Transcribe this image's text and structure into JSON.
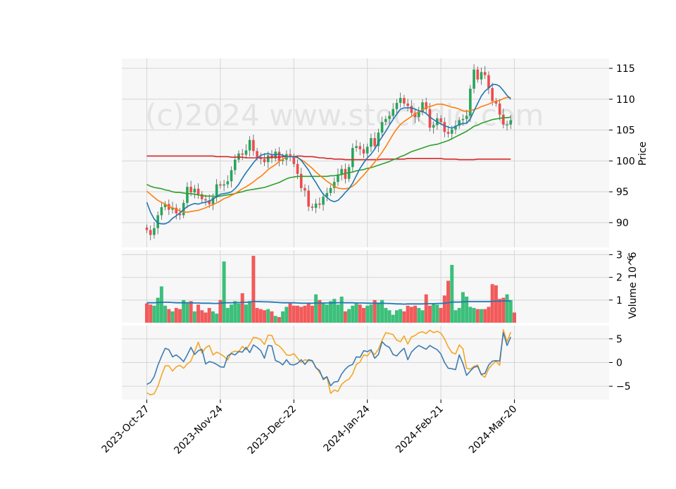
{
  "watermark": "(c)2024 www.stockdio.com",
  "chart_data": [
    {
      "type": "candlestick",
      "panel": "price",
      "ylabel": "Price",
      "ylim": [
        86.0,
        116.6
      ],
      "yticks": [
        90,
        95,
        100,
        105,
        110,
        115
      ],
      "grid": true,
      "colors": {
        "up": "#26a65b",
        "down": "#ef4b4b",
        "ma_fast": "#1f77b4",
        "ma_mid": "#ff7f0e",
        "ma_slow": "#2ca02c",
        "ma_long": "#d62728"
      },
      "close": [
        88.8,
        88.0,
        89.1,
        91.2,
        92.5,
        93.0,
        92.1,
        92.4,
        91.5,
        91.2,
        93.2,
        95.8,
        94.9,
        95.5,
        94.6,
        93.8,
        93.6,
        93.0,
        94.1,
        96.2,
        96.0,
        96.2,
        96.7,
        98.5,
        100.2,
        101.2,
        101.0,
        101.7,
        103.4,
        101.6,
        100.6,
        100.3,
        99.8,
        100.9,
        100.4,
        101.5,
        100.0,
        100.2,
        101.1,
        100.7,
        99.5,
        97.9,
        95.6,
        95.2,
        92.6,
        92.4,
        93.1,
        92.9,
        94.2,
        94.8,
        95.6,
        96.6,
        97.8,
        98.7,
        97.1,
        99.0,
        102.1,
        102.4,
        101.9,
        101.2,
        102.3,
        103.7,
        102.4,
        104.6,
        106.3,
        106.8,
        107.3,
        108.4,
        109.4,
        110.2,
        109.3,
        108.9,
        107.8,
        107.1,
        107.9,
        109.5,
        108.4,
        105.4,
        105.8,
        106.9,
        106.3,
        104.7,
        104.4,
        105.1,
        105.7,
        106.6,
        106.8,
        107.3,
        111.7,
        114.8,
        113.2,
        114.4,
        113.9,
        111.8,
        109.7,
        109.3,
        107.5,
        105.9,
        105.9,
        106.6
      ],
      "ma_fast": [
        93.3,
        91.7,
        90.6,
        89.9,
        89.8,
        89.8,
        90.1,
        90.7,
        91.1,
        91.6,
        92.1,
        92.6,
        92.9,
        93.1,
        93.0,
        93.2,
        93.3,
        93.5,
        93.8,
        94.2,
        94.6,
        94.7,
        94.8,
        95.0,
        95.5,
        96.2,
        97.2,
        98.1,
        98.9,
        99.7,
        100.4,
        100.9,
        101.1,
        101.2,
        101.0,
        101.0,
        101.1,
        100.9,
        100.7,
        100.7,
        100.7,
        100.6,
        100.1,
        99.3,
        98.5,
        97.4,
        96.5,
        95.5,
        94.6,
        94.1,
        93.6,
        93.4,
        93.6,
        94.2,
        94.9,
        95.5,
        96.4,
        97.6,
        98.8,
        99.7,
        100.5,
        101.1,
        101.9,
        103.0,
        103.9,
        104.8,
        105.8,
        106.7,
        107.6,
        108.4,
        108.6,
        108.6,
        108.6,
        108.4,
        108.1,
        108.0,
        107.7,
        107.1,
        106.7,
        106.3,
        106.0,
        105.7,
        105.5,
        105.3,
        105.6,
        105.9,
        106.1,
        106.1,
        106.8,
        108.1,
        109.3,
        110.5,
        111.3,
        111.8,
        112.4,
        112.4,
        112.1,
        111.4,
        110.6,
        110.0
      ],
      "ma_mid": [
        95.1,
        94.6,
        94.1,
        93.6,
        93.3,
        93.0,
        92.6,
        92.4,
        92.2,
        91.9,
        91.7,
        91.7,
        91.8,
        91.9,
        92.0,
        92.2,
        92.4,
        92.7,
        92.9,
        93.2,
        93.5,
        93.9,
        94.1,
        94.4,
        94.7,
        95.1,
        95.5,
        95.8,
        96.2,
        96.6,
        97.1,
        97.5,
        98.0,
        98.6,
        99.0,
        99.4,
        99.9,
        100.3,
        100.6,
        100.8,
        100.7,
        100.5,
        100.2,
        99.8,
        99.3,
        98.8,
        98.2,
        97.7,
        97.2,
        96.7,
        96.3,
        95.9,
        95.6,
        95.5,
        95.5,
        95.6,
        95.9,
        96.4,
        97.1,
        97.7,
        98.4,
        99.1,
        99.8,
        100.6,
        101.4,
        102.3,
        103.3,
        104.3,
        105.2,
        105.9,
        106.4,
        106.8,
        107.2,
        107.6,
        108.0,
        108.3,
        108.7,
        108.8,
        109.0,
        109.2,
        109.2,
        109.1,
        108.9,
        108.7,
        108.6,
        108.4,
        108.1,
        108.0,
        108.2,
        108.3,
        108.5,
        108.8,
        109.0,
        109.2,
        109.5,
        109.7,
        109.8,
        110.1,
        110.3,
        110.3
      ],
      "ma_slow": [
        96.2,
        95.9,
        95.7,
        95.6,
        95.5,
        95.3,
        95.2,
        95.0,
        94.9,
        94.9,
        94.8,
        94.7,
        94.7,
        94.6,
        94.5,
        94.4,
        94.3,
        94.3,
        94.3,
        94.2,
        94.3,
        94.4,
        94.5,
        94.6,
        94.7,
        94.9,
        95.0,
        95.2,
        95.3,
        95.4,
        95.5,
        95.6,
        95.7,
        95.9,
        96.1,
        96.3,
        96.5,
        96.8,
        97.1,
        97.3,
        97.4,
        97.5,
        97.5,
        97.5,
        97.5,
        97.5,
        97.5,
        97.5,
        97.5,
        97.5,
        97.6,
        97.6,
        97.7,
        97.8,
        98.0,
        98.1,
        98.2,
        98.4,
        98.5,
        98.6,
        98.8,
        98.9,
        99.1,
        99.3,
        99.5,
        99.7,
        99.9,
        100.2,
        100.4,
        100.7,
        100.9,
        101.2,
        101.5,
        101.7,
        101.9,
        102.1,
        102.3,
        102.5,
        102.6,
        102.7,
        102.9,
        103.1,
        103.3,
        103.6,
        103.9,
        104.2,
        104.5,
        104.8,
        105.2,
        105.6,
        105.8,
        106.1,
        106.3,
        106.5,
        106.7,
        106.8,
        106.9,
        107.0,
        107.0,
        107.1
      ],
      "ma_long": [
        100.8,
        100.8,
        100.8,
        100.8,
        100.8,
        100.8,
        100.8,
        100.8,
        100.8,
        100.8,
        100.8,
        100.8,
        100.8,
        100.8,
        100.8,
        100.8,
        100.8,
        100.8,
        100.8,
        100.7,
        100.7,
        100.7,
        100.7,
        100.6,
        100.6,
        100.6,
        100.6,
        100.5,
        100.5,
        100.5,
        100.5,
        100.5,
        100.5,
        100.5,
        100.6,
        100.6,
        100.6,
        100.7,
        100.7,
        100.7,
        100.7,
        100.8,
        100.8,
        100.7,
        100.7,
        100.7,
        100.6,
        100.5,
        100.5,
        100.4,
        100.4,
        100.3,
        100.3,
        100.3,
        100.2,
        100.2,
        100.2,
        100.2,
        100.2,
        100.2,
        100.2,
        100.2,
        100.2,
        100.2,
        100.3,
        100.3,
        100.3,
        100.3,
        100.3,
        100.3,
        100.3,
        100.4,
        100.4,
        100.4,
        100.4,
        100.4,
        100.4,
        100.4,
        100.4,
        100.4,
        100.4,
        100.3,
        100.3,
        100.3,
        100.3,
        100.2,
        100.2,
        100.2,
        100.2,
        100.2,
        100.3,
        100.3,
        100.3,
        100.3,
        100.3,
        100.3,
        100.3,
        100.3,
        100.3,
        100.3
      ]
    },
    {
      "type": "bar",
      "panel": "volume",
      "ylabel": "Volume  10^6",
      "ylim": [
        0,
        3.2
      ],
      "yticks": [
        1,
        2,
        3
      ],
      "values": [
        0.85,
        0.8,
        0.75,
        1.1,
        1.6,
        0.75,
        0.6,
        0.5,
        0.65,
        0.6,
        1.0,
        0.85,
        0.95,
        0.5,
        0.8,
        0.55,
        0.45,
        0.65,
        0.5,
        0.4,
        1.0,
        2.7,
        0.65,
        0.8,
        0.95,
        0.85,
        1.3,
        0.8,
        0.95,
        2.95,
        0.65,
        0.6,
        0.55,
        0.6,
        0.5,
        0.3,
        0.25,
        0.5,
        0.7,
        0.85,
        0.75,
        0.75,
        0.7,
        0.75,
        0.85,
        0.75,
        1.25,
        1.0,
        0.85,
        0.8,
        0.95,
        1.05,
        0.8,
        1.15,
        0.5,
        0.6,
        0.75,
        0.85,
        0.8,
        0.65,
        0.75,
        0.8,
        1.0,
        0.85,
        1.0,
        0.65,
        0.55,
        0.35,
        0.55,
        0.6,
        0.5,
        0.75,
        0.7,
        0.75,
        0.65,
        0.55,
        1.25,
        0.75,
        0.85,
        0.8,
        0.65,
        1.2,
        1.85,
        2.55,
        0.55,
        0.65,
        1.35,
        1.15,
        0.7,
        0.65,
        0.6,
        0.6,
        0.6,
        0.7,
        1.7,
        1.65,
        1.05,
        1.1,
        1.25,
        1.0,
        0.45
      ],
      "avg": [
        0.88,
        0.88,
        0.88,
        0.89,
        0.9,
        0.9,
        0.9,
        0.89,
        0.88,
        0.88,
        0.88,
        0.88,
        0.88,
        0.87,
        0.87,
        0.86,
        0.86,
        0.86,
        0.85,
        0.85,
        0.86,
        0.88,
        0.88,
        0.88,
        0.89,
        0.89,
        0.9,
        0.9,
        0.91,
        0.94,
        0.93,
        0.93,
        0.92,
        0.92,
        0.91,
        0.9,
        0.89,
        0.88,
        0.88,
        0.88,
        0.88,
        0.87,
        0.86,
        0.86,
        0.86,
        0.86,
        0.87,
        0.87,
        0.87,
        0.87,
        0.87,
        0.88,
        0.88,
        0.89,
        0.88,
        0.88,
        0.88,
        0.87,
        0.87,
        0.87,
        0.86,
        0.86,
        0.86,
        0.86,
        0.86,
        0.85,
        0.85,
        0.84,
        0.83,
        0.83,
        0.82,
        0.83,
        0.83,
        0.83,
        0.83,
        0.83,
        0.84,
        0.84,
        0.84,
        0.85,
        0.85,
        0.86,
        0.88,
        0.91,
        0.91,
        0.91,
        0.92,
        0.93,
        0.93,
        0.93,
        0.93,
        0.93,
        0.93,
        0.93,
        0.94,
        0.95,
        0.95,
        0.96,
        0.96,
        0.96
      ]
    },
    {
      "type": "line",
      "panel": "oscillator",
      "ylim": [
        -7.8,
        7.8
      ],
      "yticks": [
        -5,
        0,
        5
      ],
      "series": [
        {
          "name": "orange",
          "color": "#f5a623",
          "values": [
            -6.4,
            -6.8,
            -6.6,
            -5.0,
            -2.7,
            -0.7,
            -0.7,
            -1.8,
            -0.9,
            -0.6,
            -1.2,
            -0.3,
            0.3,
            2.3,
            4.3,
            2.0,
            3.1,
            3.6,
            1.6,
            2.2,
            1.8,
            1.3,
            0.5,
            2.1,
            2.4,
            2.3,
            3.4,
            2.7,
            3.9,
            5.3,
            5.2,
            4.8,
            3.8,
            5.8,
            5.7,
            3.9,
            3.5,
            2.7,
            1.6,
            1.5,
            1.9,
            0.9,
            0.0,
            0.6,
            0.4,
            0.3,
            -1.0,
            -2.1,
            -3.3,
            -3.0,
            -6.5,
            -5.8,
            -6.1,
            -4.6,
            -3.9,
            -3.5,
            -2.4,
            -0.4,
            0.1,
            1.6,
            1.4,
            2.4,
            1.7,
            2.8,
            4.7,
            6.3,
            6.1,
            5.9,
            4.7,
            4.4,
            5.6,
            3.9,
            5.4,
            5.7,
            6.3,
            6.5,
            6.1,
            6.8,
            6.3,
            6.6,
            6.2,
            5.0,
            3.3,
            2.1,
            1.8,
            3.7,
            2.9,
            -1.2,
            -1.4,
            -0.8,
            -0.5,
            -2.6,
            -3.1,
            -1.3,
            -0.4,
            0.3,
            -0.6,
            6.9,
            4.4,
            6.4
          ]
        },
        {
          "name": "blue",
          "color": "#3e7cb1",
          "values": [
            -4.6,
            -4.2,
            -3.0,
            -0.6,
            1.3,
            3.0,
            2.7,
            1.2,
            1.6,
            1.0,
            0.2,
            1.6,
            3.2,
            1.7,
            2.5,
            2.8,
            -0.3,
            0.2,
            0.0,
            -0.4,
            -0.9,
            -1.0,
            1.4,
            1.9,
            1.6,
            2.3,
            2.2,
            3.2,
            2.1,
            3.7,
            3.2,
            2.5,
            0.9,
            3.6,
            3.5,
            0.4,
            0.1,
            -0.5,
            0.6,
            -0.4,
            -0.5,
            -0.2,
            0.6,
            -0.4,
            0.6,
            0.4,
            -1.1,
            -1.7,
            -3.6,
            -3.0,
            -4.9,
            -4.1,
            -4.0,
            -2.4,
            -1.4,
            -0.7,
            -0.4,
            1.2,
            1.1,
            2.5,
            2.3,
            2.7,
            0.9,
            1.7,
            4.4,
            3.6,
            3.2,
            1.7,
            1.4,
            2.3,
            3.0,
            0.6,
            2.2,
            3.0,
            3.6,
            3.2,
            2.8,
            3.6,
            3.1,
            2.7,
            1.8,
            0.0,
            -1.2,
            -1.3,
            -1.5,
            1.6,
            -0.2,
            -2.7,
            -1.8,
            -1.0,
            -0.8,
            -2.5,
            -2.3,
            -0.5,
            0.3,
            0.4,
            0.3,
            6.3,
            3.6,
            5.4
          ]
        }
      ]
    }
  ],
  "x_axis": {
    "tick_labels": [
      "2023-Oct-27",
      "2023-Nov-24",
      "2023-Dec-22",
      "2024-Jan-24",
      "2024-Feb-21",
      "2024-Mar-20"
    ],
    "tick_index": [
      0,
      20,
      40,
      60,
      80,
      100
    ]
  }
}
